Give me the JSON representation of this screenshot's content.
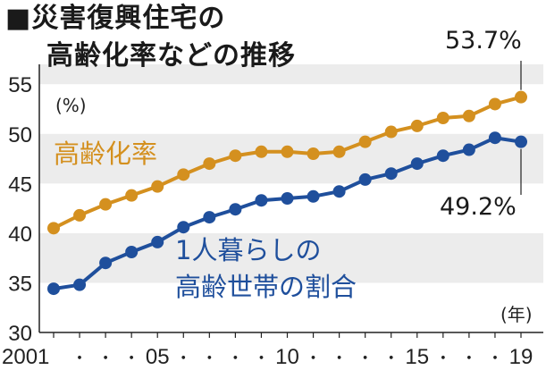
{
  "title_line1": "■災害復興住宅の",
  "title_line2": "高齢化率などの推移",
  "y_unit": "(%)",
  "x_unit": "(年)",
  "end_label_top": "53.7%",
  "end_label_bottom": "49.2%",
  "series1_label": "高齢化率",
  "series2_label_line1": "1人暮らしの",
  "series2_label_line2": "高齢世帯の割合",
  "chart_data": {
    "type": "line",
    "x": [
      2001,
      2002,
      2003,
      2004,
      2005,
      2006,
      2007,
      2008,
      2009,
      2010,
      2011,
      2012,
      2013,
      2014,
      2015,
      2016,
      2017,
      2018,
      2019
    ],
    "x_tick_labels": [
      "2001",
      "・",
      "・",
      "・",
      "05",
      "・",
      "・",
      "・",
      "・",
      "10",
      "・",
      "・",
      "・",
      "・",
      "15",
      "・",
      "・",
      "・",
      "19"
    ],
    "y_ticks": [
      30,
      35,
      40,
      45,
      50,
      55
    ],
    "ylim": [
      30,
      57
    ],
    "grid": "alternating horizontal bands",
    "series": [
      {
        "name": "高齢化率",
        "color": "#d4901f",
        "values": [
          40.5,
          41.8,
          42.9,
          43.8,
          44.7,
          45.9,
          47.0,
          47.8,
          48.2,
          48.2,
          48.0,
          48.2,
          49.2,
          50.2,
          50.8,
          51.6,
          51.8,
          53.0,
          53.7
        ]
      },
      {
        "name": "1人暮らしの高齢世帯の割合",
        "color": "#1f4f9c",
        "values": [
          34.4,
          34.8,
          37.0,
          38.1,
          39.1,
          40.6,
          41.6,
          42.4,
          43.3,
          43.5,
          43.7,
          44.2,
          45.4,
          46.0,
          47.0,
          47.8,
          48.4,
          49.6,
          49.2
        ]
      }
    ]
  }
}
